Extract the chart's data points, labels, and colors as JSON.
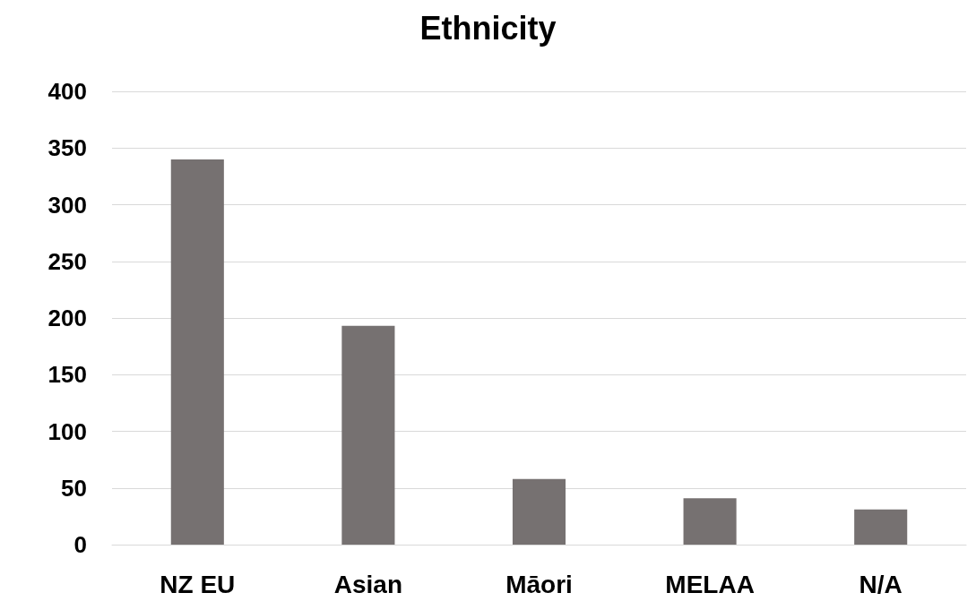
{
  "chart_data": {
    "type": "bar",
    "title": "Ethnicity",
    "categories": [
      "NZ EU",
      "Asian",
      "Māori",
      "MELAA",
      "N/A"
    ],
    "values": [
      340,
      193,
      58,
      41,
      31
    ],
    "color": "#767171",
    "ylim": [
      0,
      400
    ],
    "yticks": [
      0,
      50,
      100,
      150,
      200,
      250,
      300,
      350,
      400
    ],
    "grid": "y"
  }
}
